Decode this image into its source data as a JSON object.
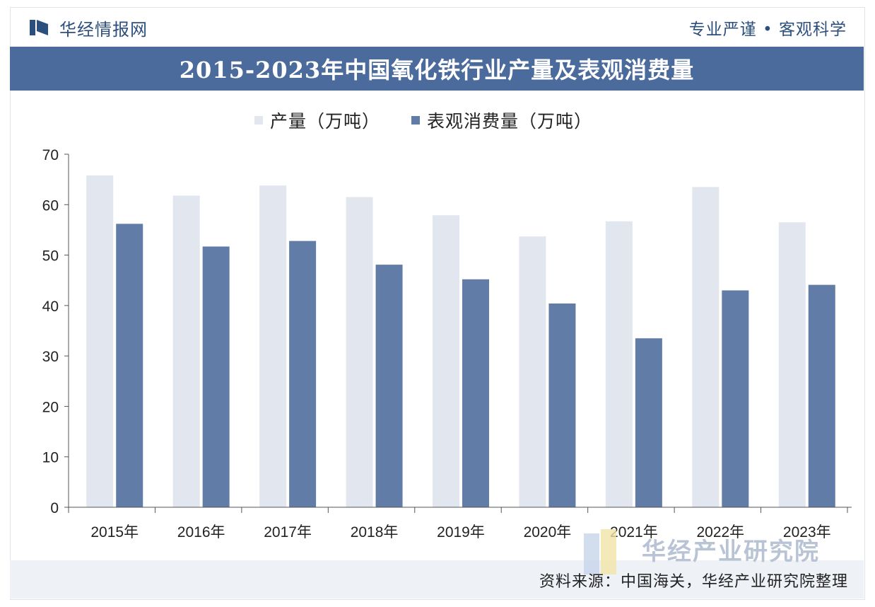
{
  "header": {
    "brand": "华经情报网",
    "slogan": "专业严谨 • 客观科学"
  },
  "banner": {
    "title": "2015-2023年中国氧化铁行业产量及表观消费量"
  },
  "colors": {
    "production": "#e1e6ef",
    "consumption": "#627ca8",
    "banner": "#4a6b9b",
    "brand": "#2d4f7e"
  },
  "chart_data": {
    "type": "bar",
    "categories": [
      "2015年",
      "2016年",
      "2017年",
      "2018年",
      "2019年",
      "2020年",
      "2021年",
      "2022年",
      "2023年"
    ],
    "series": [
      {
        "name": "产量（万吨）",
        "values": [
          65.8,
          61.8,
          63.8,
          61.5,
          57.9,
          53.7,
          56.7,
          63.5,
          56.5
        ]
      },
      {
        "name": "表观消费量（万吨）",
        "values": [
          56.2,
          51.7,
          52.8,
          48.1,
          45.2,
          40.4,
          33.5,
          43.0,
          44.1
        ]
      }
    ],
    "ylim": [
      0,
      70
    ],
    "yticks": [
      0,
      10,
      20,
      30,
      40,
      50,
      60,
      70
    ],
    "legend_position": "top",
    "grid": false
  },
  "footer": {
    "source": "资料来源：中国海关，华经产业研究院整理",
    "watermark": "华经产业研究院"
  }
}
